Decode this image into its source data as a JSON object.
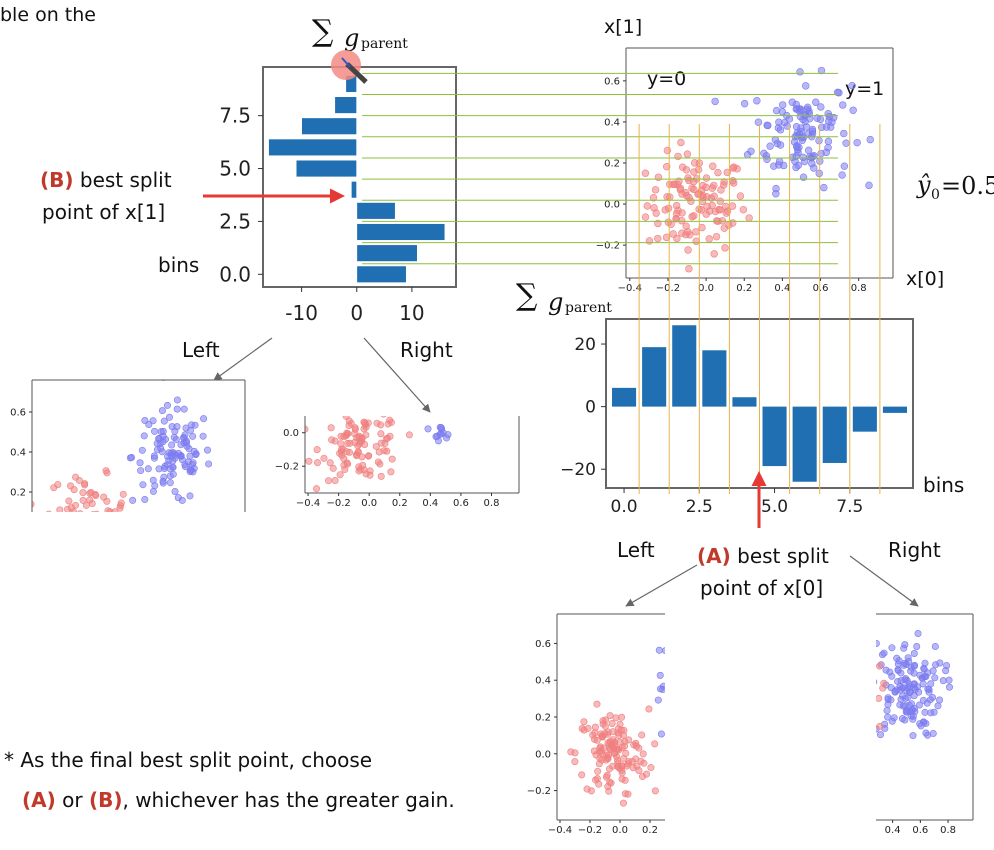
{
  "texts": {
    "top_fragment": "ble on the",
    "sum_symbol": "∑",
    "g_letter": "g",
    "g_sub": "parent",
    "xone_label": "x[1]",
    "xzero_label": "x[0]",
    "y0_label": "y=0",
    "y1_label": "y=1",
    "yhat_label": "ŷ",
    "yhat_sub": "0",
    "yhat_eq": "=0.5",
    "b_tag": "(B)",
    "b_text1": " best split",
    "b_text2": "point of x[1]",
    "bins_left": "bins",
    "bins_right": "bins",
    "a_tag": "(A)",
    "a_text1": " best split",
    "a_text2": "point of x[0]",
    "left1": "Left",
    "right1": "Right",
    "left2": "Left",
    "right2": "Right",
    "note_line1": "* As the final best split point, choose",
    "note_a": "(A)",
    "note_or": " or ",
    "note_b": "(B)",
    "note_rest": ", whichever has the greater gain."
  },
  "colors": {
    "bar": "#1f6fb2",
    "red_point": "#f08080",
    "blue_point": "#7b7bf0",
    "split_line": "#8dbf3f",
    "x_split_line": "#e8b34a",
    "arrow_red": "#e53935",
    "accent_red": "#c0392b"
  },
  "icons": {
    "cursor": "pen-cursor-icon"
  },
  "chart_data": [
    {
      "id": "hist_x1",
      "type": "bar",
      "orientation": "horizontal",
      "title": "∑ g_parent",
      "ylabel": "bins",
      "x_ticks": [
        "-10",
        "0",
        "10"
      ],
      "y_ticks": [
        "0.0",
        "2.5",
        "5.0",
        "7.5"
      ],
      "categories": [
        0,
        1,
        2,
        3,
        4,
        5,
        6,
        7,
        8,
        9
      ],
      "values": [
        9,
        11,
        16,
        7,
        -1,
        -11,
        -16,
        -10,
        -4,
        -2
      ],
      "xlim": [
        -17,
        18
      ],
      "ylim": [
        -0.6,
        9.8
      ]
    },
    {
      "id": "hist_x0",
      "type": "bar",
      "title": "∑ g_parent",
      "xlabel": "bins",
      "x_ticks": [
        "0.0",
        "2.5",
        "5.0",
        "7.5"
      ],
      "y_ticks": [
        "20",
        "0",
        "−20"
      ],
      "categories": [
        0,
        1,
        2,
        3,
        4,
        5,
        6,
        7,
        8,
        9
      ],
      "values": [
        6,
        19,
        26,
        18,
        3,
        -19,
        -24,
        -18,
        -8,
        -2
      ],
      "xlim": [
        -0.6,
        9.6
      ],
      "ylim": [
        -26,
        28
      ]
    },
    {
      "id": "scatter_main",
      "type": "scatter",
      "xlabel": "x[0]",
      "ylabel": "x[1]",
      "x_ticks": [
        "−0.4",
        "−0.2",
        "0.0",
        "0.2",
        "0.4",
        "0.6",
        "0.8"
      ],
      "y_ticks": [
        "0.6",
        "0.4",
        "0.2",
        "0.0",
        "−0.2"
      ],
      "series": [
        {
          "name": "y=0",
          "center": [
            -0.05,
            0.0
          ],
          "spread": [
            0.13,
            0.12
          ],
          "count": 120
        },
        {
          "name": "y=1",
          "center": [
            0.5,
            0.35
          ],
          "spread": [
            0.13,
            0.13
          ],
          "count": 120
        }
      ],
      "xlim": [
        -0.42,
        0.98
      ],
      "ylim": [
        -0.36,
        0.76
      ]
    },
    {
      "id": "scatter_b_left",
      "type": "scatter",
      "y_ticks": [
        "0.6",
        "0.4",
        "0.2"
      ],
      "series": [
        {
          "name": "y=0",
          "center": [
            -0.05,
            0.12
          ],
          "spread": [
            0.13,
            0.08
          ],
          "count": 60
        },
        {
          "name": "y=1",
          "center": [
            0.5,
            0.38
          ],
          "spread": [
            0.13,
            0.12
          ],
          "count": 110
        }
      ],
      "xlim": [
        -0.42,
        0.98
      ],
      "ylim": [
        0.1,
        0.76
      ]
    },
    {
      "id": "scatter_b_right",
      "type": "scatter",
      "x_ticks": [
        "−0.4",
        "−0.2",
        "0.0",
        "0.2",
        "0.4",
        "0.6",
        "0.8"
      ],
      "y_ticks": [
        "0.0",
        "−0.2"
      ],
      "series": [
        {
          "name": "y=0",
          "center": [
            -0.05,
            -0.08
          ],
          "spread": [
            0.13,
            0.1
          ],
          "count": 100
        },
        {
          "name": "y=1",
          "center": [
            0.45,
            0.0
          ],
          "spread": [
            0.05,
            0.02
          ],
          "count": 12
        }
      ],
      "xlim": [
        -0.42,
        0.98
      ],
      "ylim": [
        -0.36,
        0.1
      ]
    },
    {
      "id": "scatter_a_left",
      "type": "scatter",
      "x_ticks": [
        "−0.4",
        "−0.2",
        "0.0",
        "0.2"
      ],
      "y_ticks": [
        "0.6",
        "0.4",
        "0.2",
        "0.0",
        "−0.2"
      ],
      "series": [
        {
          "name": "y=0",
          "center": [
            -0.05,
            0.0
          ],
          "spread": [
            0.12,
            0.12
          ],
          "count": 130
        },
        {
          "name": "y=1",
          "center": [
            0.28,
            0.45
          ],
          "spread": [
            0.02,
            0.12
          ],
          "count": 8
        }
      ],
      "xlim": [
        -0.42,
        0.3
      ],
      "ylim": [
        -0.36,
        0.76
      ]
    },
    {
      "id": "scatter_a_right",
      "type": "scatter",
      "x_ticks": [
        "0.4",
        "0.6",
        "0.8"
      ],
      "series": [
        {
          "name": "y=1",
          "center": [
            0.5,
            0.35
          ],
          "spread": [
            0.13,
            0.13
          ],
          "count": 140
        },
        {
          "name": "y=0",
          "center": [
            0.31,
            0.3
          ],
          "spread": [
            0.02,
            0.1
          ],
          "count": 5
        }
      ],
      "xlim": [
        0.28,
        0.98
      ],
      "ylim": [
        -0.36,
        0.76
      ]
    }
  ]
}
